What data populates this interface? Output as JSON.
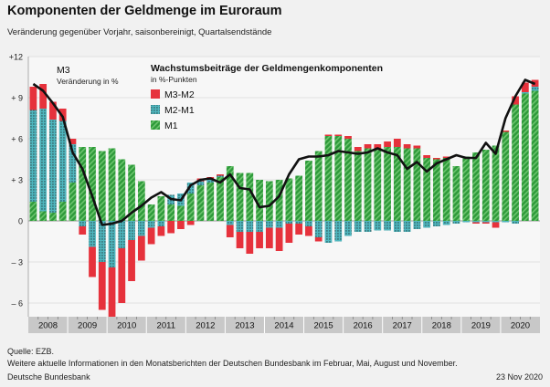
{
  "header": {
    "title": "Komponenten der Geldmenge im Euroraum",
    "subtitle": "Veränderung gegenüber Vorjahr, saisonbereinigt, Quartalsendstände"
  },
  "footer": {
    "source": "Quelle: EZB.",
    "note": "Weitere aktuelle Informationen in den Monatsberichten der Deutschen Bundesbank im Februar, Mai, August und November.",
    "publisher": "Deutsche Bundesbank",
    "date": "23 Nov 2020"
  },
  "colors": {
    "m1": "#2e9a3a",
    "m1_stripe": "#6cc46e",
    "m2m1": "#4fb7bf",
    "m2m1_dot": "#1a1a1a",
    "m3m2": "#e6323c",
    "m3_line": "#111111",
    "background": "#f1f1f1",
    "plot_background": "#f7f7f7",
    "year_axis": "#c8c8c8"
  },
  "chart_data": {
    "type": "bar",
    "stacked": true,
    "ylim": [
      -7,
      12
    ],
    "yticks": [
      -6,
      -3,
      0,
      3,
      6,
      9,
      12
    ],
    "ytick_labels": [
      "– 6",
      "– 3",
      "0",
      "+ 3",
      "+ 6",
      "+ 9",
      "+12"
    ],
    "grid": true,
    "years": [
      "2008",
      "2009",
      "2010",
      "2011",
      "2012",
      "2013",
      "2014",
      "2015",
      "2016",
      "2017",
      "2018",
      "2019",
      "2020"
    ],
    "quarters_per_year": 4,
    "legend": {
      "title": "Wachstumsbeiträge der Geldmengenkomponenten",
      "subtitle": "in %-Punkten",
      "placement": "top-center"
    },
    "line_label": "M3",
    "line_sublabel": "Veränderung in %",
    "series": [
      {
        "name": "M3-M2",
        "kind": "bar",
        "values": [
          1.7,
          1.8,
          1.3,
          0.9,
          0.4,
          -0.6,
          -2.2,
          -3.5,
          -4.5,
          -4.0,
          -3.0,
          -1.8,
          -1.2,
          -0.7,
          -0.9,
          -0.6,
          -0.3,
          0.2,
          0.2,
          0.1,
          -0.9,
          -1.2,
          -1.6,
          -1.2,
          -1.5,
          -1.7,
          -1.4,
          -0.8,
          -0.7,
          -0.3,
          0.1,
          0.1,
          0.2,
          0.3,
          0.3,
          0.3,
          0.4,
          0.6,
          0.3,
          0.2,
          0.2,
          0.1,
          0.1,
          0.0,
          0.0,
          -0.1,
          -0.1,
          -0.4,
          0.1,
          0.6,
          0.7,
          0.5
        ]
      },
      {
        "name": "M2-M1",
        "kind": "bar",
        "values": [
          6.7,
          7.5,
          6.8,
          5.9,
          2.8,
          -0.4,
          -1.9,
          -3.0,
          -3.4,
          -2.0,
          -1.4,
          -1.1,
          -0.5,
          -0.4,
          0.7,
          0.9,
          0.8,
          0.3,
          0.2,
          0.1,
          -0.3,
          -0.8,
          -0.8,
          -0.8,
          -0.5,
          -0.5,
          -0.2,
          -0.2,
          -0.4,
          -1.2,
          -1.6,
          -1.5,
          -1.1,
          -0.8,
          -0.8,
          -0.7,
          -0.7,
          -0.8,
          -0.8,
          -0.6,
          -0.5,
          -0.4,
          -0.3,
          -0.2,
          -0.1,
          -0.1,
          -0.1,
          -0.1,
          -0.1,
          -0.2,
          0.1,
          0.3
        ]
      },
      {
        "name": "M1",
        "kind": "bar",
        "values": [
          1.4,
          0.7,
          0.6,
          1.4,
          2.8,
          5.4,
          5.4,
          5.1,
          5.3,
          4.5,
          4.1,
          2.9,
          1.2,
          1.8,
          1.2,
          1.1,
          2.0,
          2.6,
          2.8,
          3.2,
          4.0,
          3.5,
          3.5,
          3.0,
          2.9,
          3.0,
          3.1,
          3.3,
          4.4,
          5.1,
          6.2,
          6.2,
          6.0,
          5.1,
          5.3,
          5.3,
          5.4,
          5.4,
          5.3,
          5.3,
          4.6,
          4.5,
          4.6,
          4.0,
          4.7,
          5.0,
          5.2,
          5.5,
          6.5,
          8.5,
          9.3,
          9.5
        ]
      },
      {
        "name": "M3",
        "kind": "line",
        "values": [
          10.0,
          9.5,
          8.6,
          7.6,
          5.0,
          3.8,
          1.8,
          -0.3,
          -0.2,
          0.0,
          0.6,
          1.1,
          1.7,
          2.1,
          1.6,
          1.5,
          2.6,
          3.0,
          3.1,
          2.8,
          3.4,
          2.4,
          2.3,
          1.0,
          1.1,
          1.8,
          3.4,
          4.5,
          4.7,
          4.7,
          4.8,
          5.1,
          5.0,
          4.9,
          5.0,
          5.3,
          5.0,
          4.8,
          3.8,
          4.3,
          3.6,
          4.2,
          4.5,
          4.8,
          4.6,
          4.6,
          5.7,
          4.9,
          7.5,
          9.1,
          10.3,
          10.0
        ]
      }
    ]
  }
}
